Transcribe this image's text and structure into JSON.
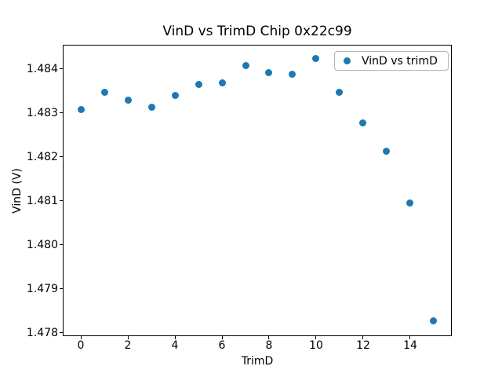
{
  "figure": {
    "background": "#ffffff",
    "text_color": "#000000",
    "spine_color": "#000000"
  },
  "chart_data": {
    "type": "scatter",
    "title": "VinD vs TrimD Chip 0x22c99",
    "xlabel": "TrimD",
    "ylabel": "VinD (V)",
    "legend": {
      "label": "VinD vs trimD",
      "position": "upper right"
    },
    "marker_color": "#1f77b4",
    "grid": false,
    "x": [
      0,
      1,
      2,
      3,
      4,
      5,
      6,
      7,
      8,
      9,
      10,
      11,
      12,
      13,
      14,
      15
    ],
    "y": [
      1.48308,
      1.48347,
      1.48328,
      1.48313,
      1.48339,
      1.48365,
      1.48368,
      1.48408,
      1.48392,
      1.48388,
      1.48424,
      1.48347,
      1.48276,
      1.48212,
      1.48095,
      1.47826
    ],
    "xlim": [
      -0.767,
      15.767
    ],
    "ylim": [
      1.47792,
      1.484545
    ],
    "xticks": [
      0,
      2,
      4,
      6,
      8,
      10,
      12,
      14
    ],
    "xtick_labels": [
      "0",
      "2",
      "4",
      "6",
      "8",
      "10",
      "12",
      "14"
    ],
    "yticks": [
      1.478,
      1.479,
      1.48,
      1.481,
      1.482,
      1.483,
      1.484
    ],
    "ytick_labels": [
      "1.478",
      "1.479",
      "1.480",
      "1.481",
      "1.482",
      "1.483",
      "1.484"
    ]
  }
}
